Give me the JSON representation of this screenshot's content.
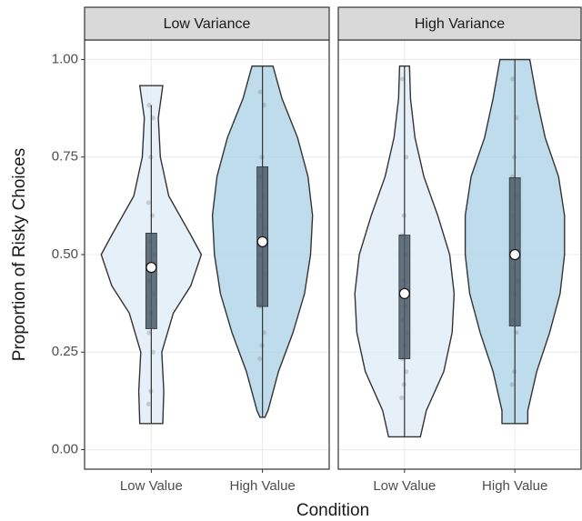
{
  "chart_data": {
    "type": "violin",
    "x_label": "Condition",
    "y_label": "Proportion of Risky Choices",
    "categories": [
      "Low Value",
      "High Value"
    ],
    "colors": [
      "#deebf7",
      "#a9d0e6"
    ],
    "box_color": "#4a5a66",
    "ylim": [
      -0.05,
      1.05
    ],
    "yticks": [
      {
        "value": 0,
        "label": "0.00"
      },
      {
        "value": 0.25,
        "label": "0.25"
      },
      {
        "value": 0.5,
        "label": "0.50"
      },
      {
        "value": 0.75,
        "label": "0.75"
      },
      {
        "value": 1,
        "label": "1.00"
      }
    ],
    "grid": true,
    "panels": [
      {
        "title": "Low Variance",
        "groups": [
          {
            "density_y": [
              0.933,
              0.85,
              0.75,
              0.65,
              0.55,
              0.5,
              0.42,
              0.35,
              0.25,
              0.15,
              0.067
            ],
            "density": [
              0.23,
              0.14,
              0.18,
              0.35,
              0.79,
              1,
              0.79,
              0.44,
              0.21,
              0.25,
              0.23
            ],
            "whisker": [
              0.067,
              0.883
            ],
            "q1": 0.31,
            "median": 0.467,
            "q3": 0.555,
            "points": [
              0.117,
              0.15,
              0.25,
              0.3,
              0.35,
              0.4,
              0.433,
              0.467,
              0.5,
              0.533,
              0.6,
              0.633,
              0.75,
              0.85,
              0.883
            ]
          },
          {
            "density_y": [
              0.983,
              0.9,
              0.8,
              0.7,
              0.6,
              0.5,
              0.4,
              0.3,
              0.2,
              0.1,
              0.083
            ],
            "density": [
              0.21,
              0.39,
              0.7,
              0.91,
              1,
              0.96,
              0.84,
              0.61,
              0.32,
              0.11,
              0.05
            ],
            "whisker": [
              0.083,
              0.983
            ],
            "q1": 0.367,
            "median": 0.533,
            "q3": 0.725,
            "points": [
              0.233,
              0.267,
              0.3,
              0.367,
              0.4,
              0.45,
              0.5,
              0.533,
              0.567,
              0.6,
              0.65,
              0.7,
              0.75,
              0.883,
              0.917
            ]
          }
        ]
      },
      {
        "title": "High Variance",
        "groups": [
          {
            "density_y": [
              0.983,
              0.9,
              0.8,
              0.7,
              0.6,
              0.5,
              0.4,
              0.3,
              0.2,
              0.1,
              0.033
            ],
            "density": [
              0.1,
              0.12,
              0.21,
              0.39,
              0.67,
              0.91,
              1,
              0.96,
              0.79,
              0.44,
              0.32
            ],
            "whisker": [
              0.033,
              0.983
            ],
            "q1": 0.233,
            "median": 0.4,
            "q3": 0.55,
            "points": [
              0.133,
              0.167,
              0.2,
              0.233,
              0.267,
              0.3,
              0.333,
              0.367,
              0.4,
              0.433,
              0.5,
              0.55,
              0.6,
              0.75,
              0.95
            ]
          },
          {
            "density_y": [
              1,
              0.9,
              0.8,
              0.7,
              0.6,
              0.5,
              0.4,
              0.3,
              0.2,
              0.1,
              0.067
            ],
            "density": [
              0.3,
              0.44,
              0.61,
              0.88,
              1,
              1,
              0.91,
              0.7,
              0.44,
              0.26,
              0.26
            ],
            "whisker": [
              0.067,
              1
            ],
            "q1": 0.317,
            "median": 0.5,
            "q3": 0.697,
            "points": [
              0.167,
              0.2,
              0.3,
              0.333,
              0.4,
              0.433,
              0.467,
              0.5,
              0.55,
              0.6,
              0.65,
              0.7,
              0.75,
              0.85,
              0.95
            ]
          }
        ]
      }
    ]
  }
}
